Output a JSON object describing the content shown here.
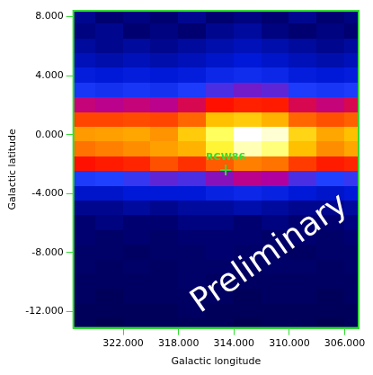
{
  "chart_data": {
    "type": "heatmap",
    "xlabel": "Galactic longitude",
    "ylabel": "Galactic latitude",
    "xlim": [
      325.6,
      305
    ],
    "ylim": [
      -13.1,
      8.4
    ],
    "xticks": [
      {
        "value": 322,
        "label": "322.000"
      },
      {
        "value": 318,
        "label": "318.000"
      },
      {
        "value": 314,
        "label": "314.000"
      },
      {
        "value": 310,
        "label": "310.000"
      },
      {
        "value": 306,
        "label": "306.000"
      }
    ],
    "yticks": [
      {
        "value": 8,
        "label": "8.000"
      },
      {
        "value": 4,
        "label": "4.000"
      },
      {
        "value": 0,
        "label": "0.000"
      },
      {
        "value": -4,
        "label": "-4.000"
      },
      {
        "value": -8,
        "label": "-8.000"
      },
      {
        "value": -12,
        "label": "-12.000"
      }
    ],
    "grid": true,
    "heatmap": {
      "x": [
        325,
        323,
        321,
        319,
        317,
        315,
        313,
        311,
        309,
        307,
        305
      ],
      "y": [
        8,
        7,
        6,
        5,
        4,
        3,
        2,
        1,
        0,
        -1,
        -2,
        -3,
        -4,
        -5,
        -6,
        -7,
        -8,
        -9,
        -10,
        -11,
        -12,
        -13
      ],
      "zlim": [
        0,
        10
      ],
      "z": [
        [
          1.2,
          1.0,
          1.1,
          1.0,
          1.2,
          1.0,
          1.1,
          1.0,
          1.2,
          1.0,
          1.1
        ],
        [
          1.1,
          1.2,
          1.0,
          1.1,
          1.0,
          1.2,
          1.3,
          1.1,
          1.0,
          1.1,
          1.0
        ],
        [
          1.3,
          1.2,
          1.3,
          1.2,
          1.3,
          1.4,
          1.5,
          1.4,
          1.3,
          1.2,
          1.3
        ],
        [
          1.5,
          1.4,
          1.5,
          1.4,
          1.5,
          1.6,
          1.7,
          1.6,
          1.5,
          1.4,
          1.5
        ],
        [
          1.8,
          1.7,
          1.8,
          1.7,
          1.8,
          2.0,
          2.1,
          2.0,
          1.8,
          1.7,
          1.8
        ],
        [
          2.3,
          2.2,
          2.3,
          2.2,
          2.4,
          2.7,
          2.9,
          2.8,
          2.4,
          2.3,
          2.4
        ],
        [
          3.4,
          3.3,
          3.4,
          3.3,
          3.6,
          4.0,
          4.3,
          4.2,
          3.6,
          3.4,
          3.6
        ],
        [
          5.0,
          5.0,
          5.1,
          5.0,
          5.6,
          7.0,
          7.2,
          6.8,
          5.6,
          5.2,
          5.5
        ],
        [
          6.4,
          6.5,
          6.6,
          6.3,
          7.2,
          8.4,
          9.6,
          9.2,
          7.4,
          6.6,
          7.0
        ],
        [
          5.8,
          6.0,
          6.2,
          6.5,
          6.8,
          8.0,
          9.0,
          8.6,
          7.0,
          6.2,
          6.6
        ],
        [
          4.0,
          4.2,
          4.4,
          5.2,
          4.6,
          5.4,
          6.0,
          5.8,
          4.8,
          4.2,
          4.4
        ],
        [
          2.4,
          2.5,
          2.6,
          2.8,
          2.7,
          3.0,
          3.3,
          3.2,
          2.7,
          2.5,
          2.6
        ],
        [
          1.6,
          1.6,
          1.7,
          1.7,
          1.7,
          1.9,
          2.0,
          1.9,
          1.7,
          1.6,
          1.7
        ],
        [
          1.2,
          1.2,
          1.3,
          1.2,
          1.3,
          1.3,
          1.4,
          1.3,
          1.2,
          1.2,
          1.3
        ],
        [
          1.0,
          1.1,
          1.0,
          1.0,
          1.1,
          1.1,
          1.0,
          1.1,
          1.0,
          1.0,
          1.1
        ],
        [
          1.0,
          0.9,
          1.0,
          0.9,
          1.0,
          1.0,
          1.0,
          0.9,
          1.0,
          0.9,
          1.0
        ],
        [
          0.9,
          0.9,
          0.8,
          0.9,
          0.9,
          1.0,
          0.9,
          0.9,
          0.8,
          0.9,
          0.9
        ],
        [
          0.9,
          0.8,
          0.9,
          0.8,
          0.9,
          0.9,
          0.8,
          0.9,
          0.9,
          0.8,
          0.9
        ],
        [
          0.8,
          0.8,
          0.8,
          0.8,
          0.9,
          0.8,
          0.8,
          0.8,
          0.8,
          0.8,
          0.8
        ],
        [
          0.8,
          0.7,
          0.8,
          0.8,
          0.8,
          0.8,
          0.7,
          0.8,
          0.8,
          0.7,
          0.8
        ],
        [
          0.7,
          0.7,
          0.7,
          0.7,
          0.8,
          0.7,
          0.7,
          0.7,
          0.7,
          0.7,
          0.7
        ],
        [
          0.7,
          0.6,
          0.7,
          0.7,
          0.7,
          0.7,
          0.6,
          0.7,
          0.7,
          0.6,
          0.7
        ]
      ]
    },
    "markers": [
      {
        "label": "RCW86",
        "x": 314.6,
        "y": -2.4,
        "marker": "cross",
        "color": "#33dd33"
      }
    ],
    "annotations": [
      {
        "text": "Preliminary",
        "x": 311.4,
        "y": -8.1,
        "color": "#ffffff"
      }
    ]
  }
}
